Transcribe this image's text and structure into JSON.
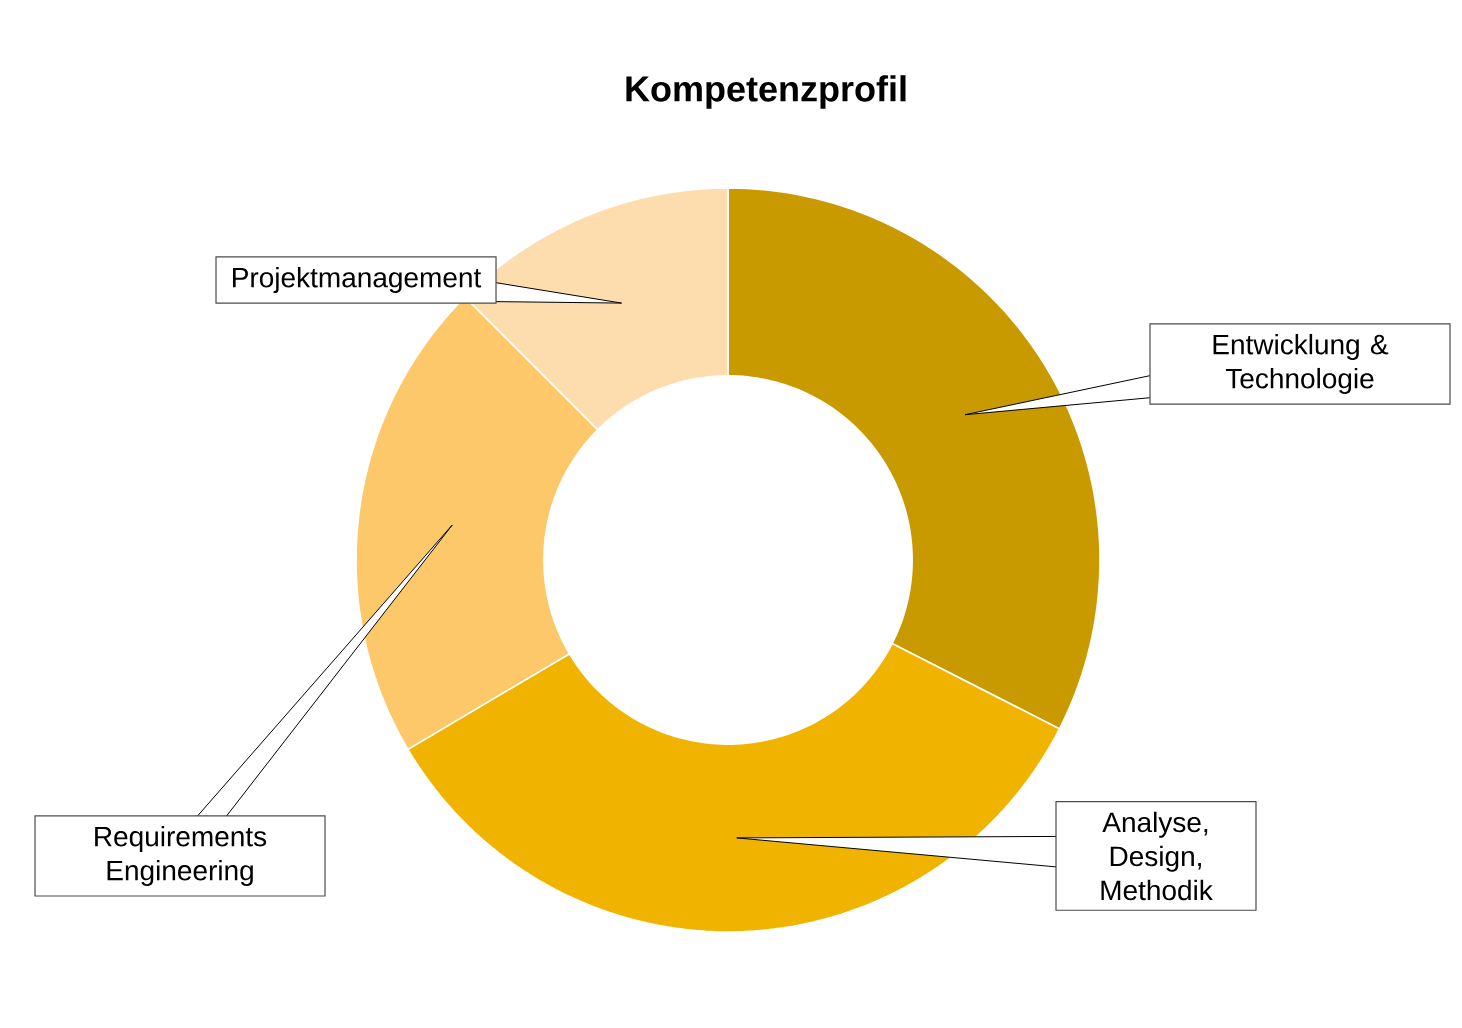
{
  "chart_data": {
    "type": "donut",
    "title": "Kompetenzprofil",
    "categories": [
      "Entwicklung & Technologie",
      "Analyse, Design, Methodik",
      "Requirements Engineering",
      "Projektmanagement"
    ],
    "values": [
      32.5,
      34,
      21,
      12.5
    ],
    "colors": [
      "#c89a00",
      "#f0b400",
      "#fcc86a",
      "#fddcae"
    ]
  }
}
